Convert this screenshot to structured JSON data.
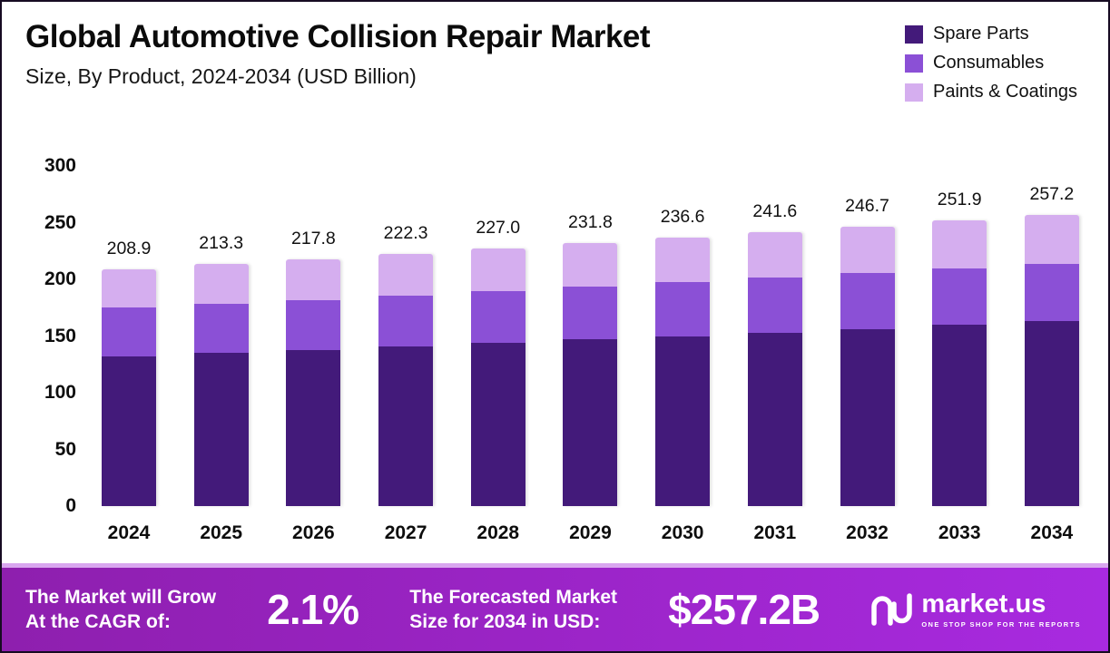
{
  "chart_data": {
    "type": "bar",
    "stacked": true,
    "title": "Global Automotive Collision Repair Market",
    "subtitle": "Size, By Product, 2024-2034 (USD Billion)",
    "unit": "USD Billion",
    "categories": [
      "2024",
      "2025",
      "2026",
      "2027",
      "2028",
      "2029",
      "2030",
      "2031",
      "2032",
      "2033",
      "2034"
    ],
    "series": [
      {
        "name": "Spare Parts",
        "color": "#431a7a",
        "values": [
          132,
          135,
          138,
          141,
          144,
          147,
          150,
          153,
          156,
          160,
          163
        ]
      },
      {
        "name": "Consumables",
        "color": "#8b50d6",
        "values": [
          43,
          43.5,
          44,
          45,
          45.5,
          46.5,
          47.5,
          48.5,
          49.5,
          50,
          51
        ]
      },
      {
        "name": "Paints & Coatings",
        "color": "#d5aeef",
        "values": [
          33.9,
          34.8,
          35.8,
          36.3,
          37.5,
          38.3,
          39.1,
          40.1,
          41.2,
          41.9,
          43.2
        ]
      }
    ],
    "totals": [
      208.9,
      213.3,
      217.8,
      222.3,
      227.0,
      231.8,
      236.6,
      241.6,
      246.7,
      251.9,
      257.2
    ],
    "total_labels": [
      "208.9",
      "213.3",
      "217.8",
      "222.3",
      "227.0",
      "231.8",
      "236.6",
      "241.6",
      "246.7",
      "251.9",
      "257.2"
    ],
    "xlabel": "",
    "ylabel": "",
    "ylim": [
      0,
      300
    ],
    "yticks": [
      0,
      50,
      100,
      150,
      200,
      250,
      300
    ],
    "grid": false,
    "legend_position": "top-right"
  },
  "footer": {
    "cagr_label": "The Market will Grow\nAt the CAGR of:",
    "cagr_value": "2.1%",
    "forecast_label": "The Forecasted Market\nSize for 2034 in USD:",
    "forecast_value": "$257.2B",
    "brand": "market.us",
    "brand_tagline": "ONE STOP SHOP FOR THE REPORTS"
  },
  "colors": {
    "page_border": "#160b22",
    "banner_gradient_start": "#8e1fae",
    "banner_gradient_end": "#a82ae0",
    "banner_top_strip": "#d9a6ef"
  }
}
